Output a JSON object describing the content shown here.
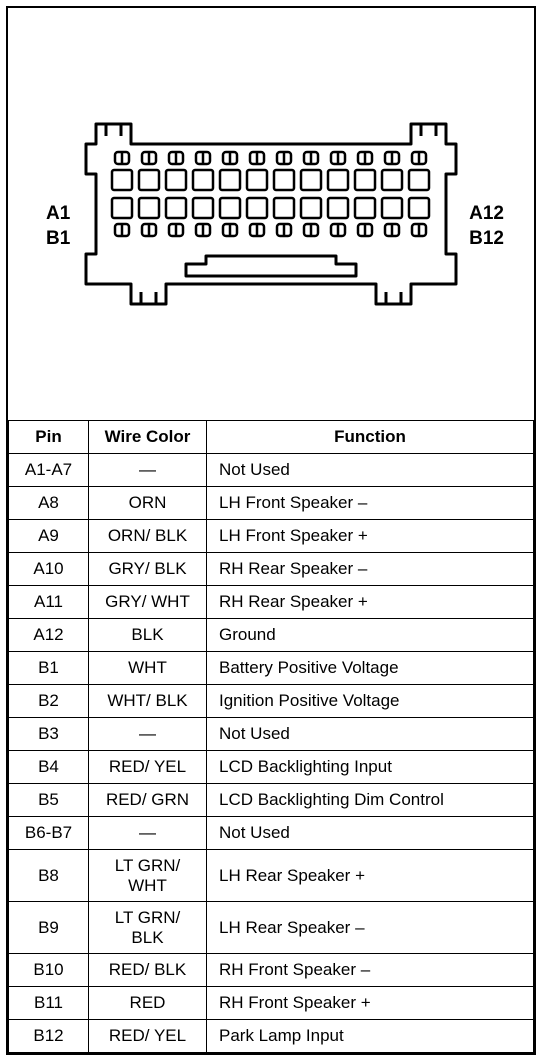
{
  "diagram": {
    "labels": {
      "A1": "A1",
      "A12": "A12",
      "B1": "B1",
      "B12": "B12"
    },
    "stroke": "#000000",
    "stroke_width": 3,
    "background": "#ffffff",
    "pin_count_per_row": 12,
    "rows": 2
  },
  "table": {
    "headers": {
      "pin": "Pin",
      "color": "Wire Color",
      "func": "Function"
    },
    "rows": [
      {
        "pin": "A1-A7",
        "color": "—",
        "func": "Not Used"
      },
      {
        "pin": "A8",
        "color": "ORN",
        "func": "LH Front Speaker –"
      },
      {
        "pin": "A9",
        "color": "ORN/ BLK",
        "func": "LH Front Speaker +"
      },
      {
        "pin": "A10",
        "color": "GRY/ BLK",
        "func": "RH Rear Speaker –"
      },
      {
        "pin": "A11",
        "color": "GRY/ WHT",
        "func": "RH Rear Speaker +"
      },
      {
        "pin": "A12",
        "color": "BLK",
        "func": "Ground"
      },
      {
        "pin": "B1",
        "color": "WHT",
        "func": "Battery Positive Voltage"
      },
      {
        "pin": "B2",
        "color": "WHT/ BLK",
        "func": "Ignition Positive Voltage"
      },
      {
        "pin": "B3",
        "color": "—",
        "func": "Not Used"
      },
      {
        "pin": "B4",
        "color": "RED/ YEL",
        "func": "LCD Backlighting Input"
      },
      {
        "pin": "B5",
        "color": "RED/ GRN",
        "func": "LCD Backlighting Dim Control"
      },
      {
        "pin": "B6-B7",
        "color": "—",
        "func": "Not Used"
      },
      {
        "pin": "B8",
        "color": "LT GRN/\nWHT",
        "func": "LH Rear Speaker +"
      },
      {
        "pin": "B9",
        "color": "LT GRN/\nBLK",
        "func": "LH Rear Speaker –"
      },
      {
        "pin": "B10",
        "color": "RED/ BLK",
        "func": "RH Front Speaker –"
      },
      {
        "pin": "B11",
        "color": "RED",
        "func": "RH Front Speaker +"
      },
      {
        "pin": "B12",
        "color": "RED/ YEL",
        "func": "Park Lamp Input"
      }
    ]
  },
  "style": {
    "border_color": "#000000",
    "font_size_table": 17,
    "font_size_label": 19
  }
}
